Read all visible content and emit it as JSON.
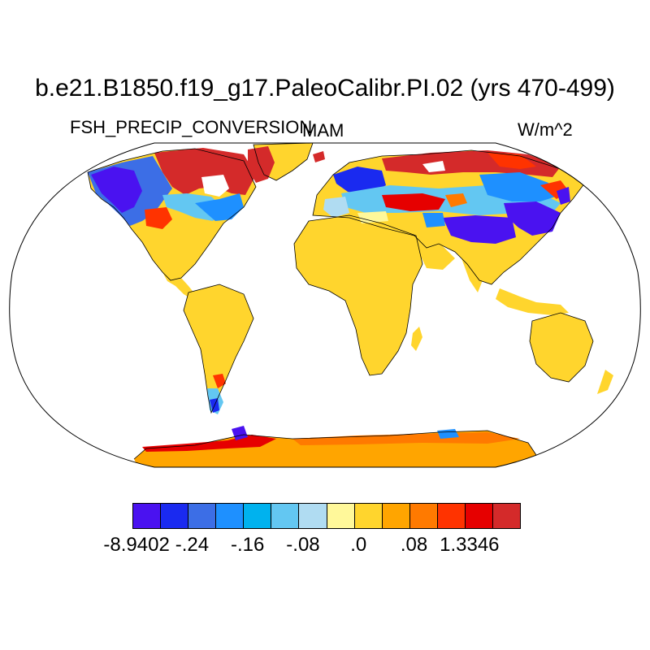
{
  "title": "b.e21.B1850.f19_g17.PaleoCalibr.PI.02 (yrs 470-499)",
  "left_subtitle": "FSH_PRECIP_CONVERSION",
  "center_subtitle": "MAM",
  "right_subtitle": "W/m^2",
  "map": {
    "projection": "Robinson",
    "land_default_color": "#ffd52d",
    "antarctica_color": "#ffa500",
    "ocean_color": "#ffffff"
  },
  "colorbar": {
    "colors": [
      "#4a12f0",
      "#1a2af0",
      "#3c6ee6",
      "#1e90ff",
      "#00b2ee",
      "#63c7f2",
      "#b0dcf2",
      "#fff89a",
      "#ffd52d",
      "#ffa500",
      "#ff7a00",
      "#ff3300",
      "#e60000",
      "#d42a2a"
    ],
    "labels": [
      "-8.9402",
      "-.24",
      "-.16",
      "-.08",
      ".0",
      ".08",
      "1.3346"
    ]
  }
}
